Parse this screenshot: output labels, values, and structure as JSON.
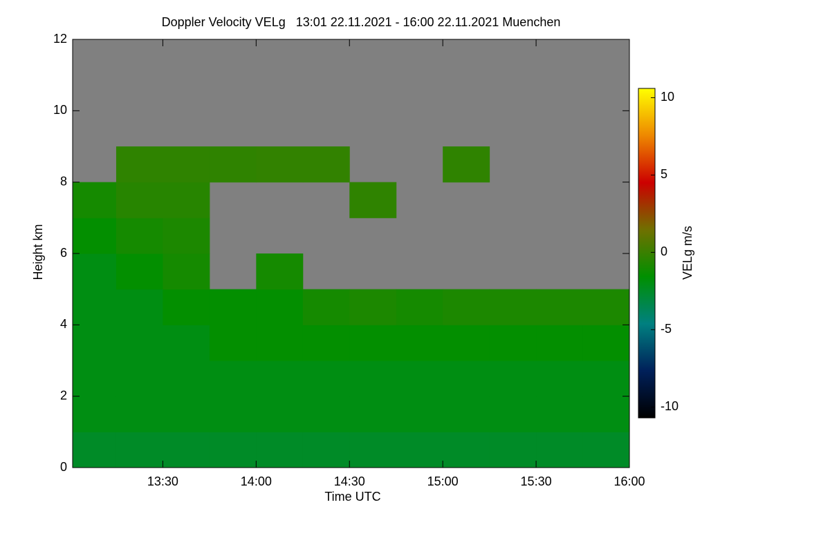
{
  "chart_data": {
    "type": "heatmap",
    "title": "Doppler Velocity VELg   13:01 22.11.2021 - 16:00 22.11.2021 Muenchen",
    "x_label": "Time UTC",
    "y_label": "Height km",
    "colorbar_label": "VELg m/s",
    "xedges": [
      13.0167,
      13.25,
      13.5,
      13.75,
      14.0,
      14.25,
      14.5,
      14.75,
      15.0,
      15.25,
      15.5,
      15.75,
      16.0
    ],
    "yedges": [
      0,
      1,
      2,
      3,
      4,
      5,
      6,
      7,
      8,
      9,
      10,
      11,
      12
    ],
    "z": [
      [
        -2.5,
        -2.5,
        -2.5,
        -2.5,
        -2.5,
        -2.5,
        -2.5,
        -2.5,
        -2.5,
        -2.5,
        -2.5,
        -2.5
      ],
      [
        -2,
        -2,
        -2,
        -2,
        -2,
        -2,
        -2,
        -2,
        -2,
        -2,
        -2,
        -2
      ],
      [
        -2,
        -2,
        -2,
        -2,
        -2,
        -2,
        -2,
        -2,
        -2,
        -2,
        -2,
        -2
      ],
      [
        -2,
        -2,
        -2,
        -1.5,
        -1.5,
        -1.5,
        -1.5,
        -1.5,
        -1.5,
        -1.5,
        -1.5,
        -1.5
      ],
      [
        -2,
        -2,
        -1.5,
        -1.5,
        -1.5,
        -1,
        -0.8,
        -1,
        -0.8,
        -0.8,
        -0.8,
        -0.8
      ],
      [
        -2,
        -1.5,
        -1,
        null,
        -1,
        null,
        null,
        null,
        null,
        null,
        null,
        null
      ],
      [
        -1.5,
        -1,
        -0.8,
        null,
        null,
        null,
        null,
        null,
        null,
        null,
        null,
        null
      ],
      [
        -1,
        -0.5,
        -0.5,
        null,
        null,
        null,
        -0.3,
        null,
        null,
        null,
        null,
        null
      ],
      [
        null,
        -0.3,
        -0.3,
        -0.3,
        -0.2,
        -0.2,
        null,
        null,
        -0.3,
        null,
        null,
        null
      ],
      [
        null,
        null,
        null,
        null,
        null,
        null,
        null,
        null,
        null,
        null,
        null,
        null
      ],
      [
        null,
        null,
        null,
        null,
        null,
        null,
        null,
        null,
        null,
        null,
        null,
        null
      ],
      [
        null,
        null,
        null,
        null,
        null,
        null,
        null,
        null,
        null,
        null,
        null,
        null
      ]
    ],
    "xlim": [
      13.0167,
      16.0
    ],
    "ylim": [
      0,
      12
    ],
    "xticks": [
      {
        "value": 13.5,
        "label": "13:30"
      },
      {
        "value": 14.0,
        "label": "14:00"
      },
      {
        "value": 14.5,
        "label": "14:30"
      },
      {
        "value": 15.0,
        "label": "15:00"
      },
      {
        "value": 15.5,
        "label": "15:30"
      },
      {
        "value": 16.0,
        "label": "16:00"
      }
    ],
    "yticks": [
      0,
      2,
      4,
      6,
      8,
      10,
      12
    ],
    "clim": [
      -10.7,
      10.6
    ],
    "cticks": [
      -10,
      -5,
      0,
      5,
      10
    ],
    "colormap": [
      "#000000",
      "#00205a",
      "#008080",
      "#009000",
      "#707000",
      "#cc0000",
      "#ee8800",
      "#ffff00"
    ],
    "missing_color": "#808080"
  }
}
